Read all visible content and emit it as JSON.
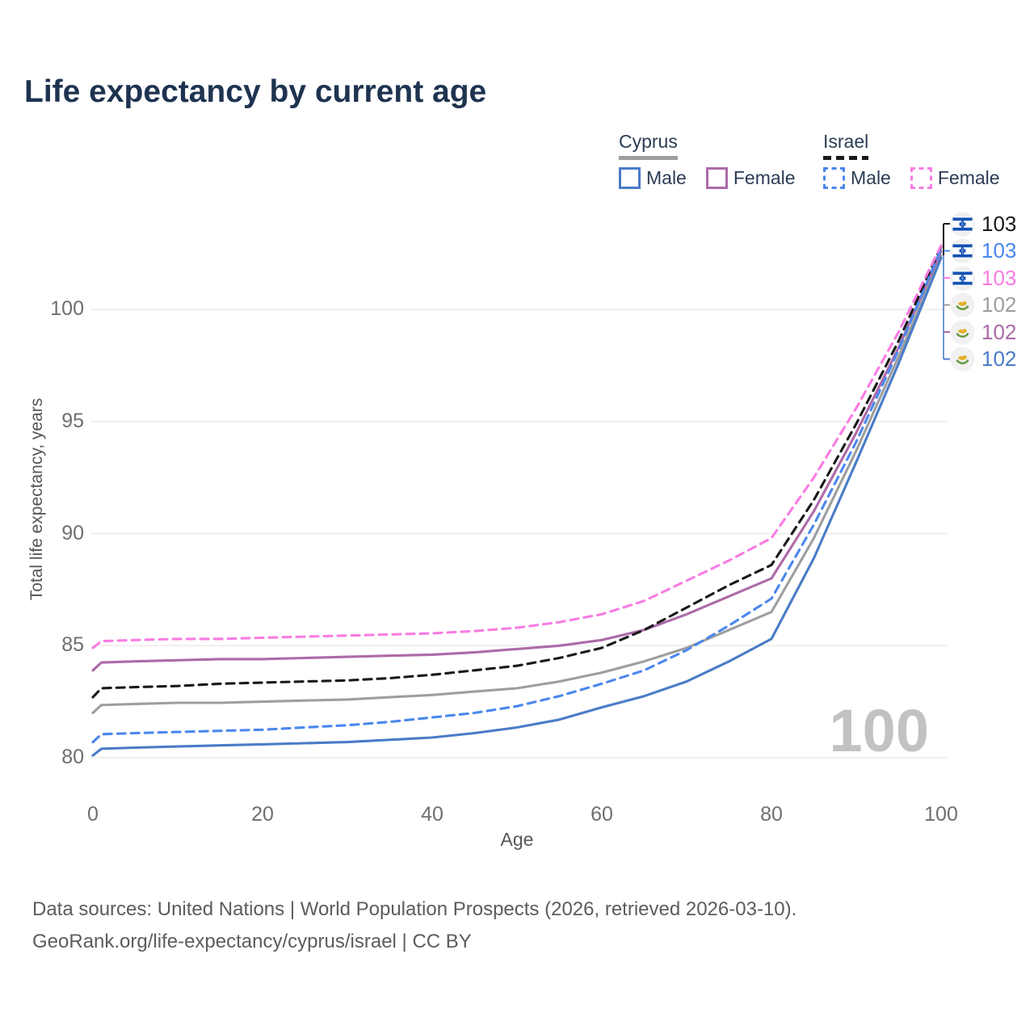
{
  "title": "Life expectancy by current age",
  "legend": {
    "groups": [
      {
        "label": "Cyprus",
        "series": "Cyprus",
        "items": [
          {
            "label": "Male",
            "series": "Cyprus Male"
          },
          {
            "label": "Female",
            "series": "Cyprus Female"
          }
        ]
      },
      {
        "label": "Israel",
        "series": "Israel",
        "items": [
          {
            "label": "Male",
            "series": "Israel Male"
          },
          {
            "label": "Female",
            "series": "Israel Female"
          }
        ]
      }
    ]
  },
  "watermark_age": "100",
  "end_labels": [
    {
      "flag": "Israel",
      "value": "103",
      "color": "#1a1a1a"
    },
    {
      "flag": "Israel",
      "value": "103",
      "color": "#4b87ee"
    },
    {
      "flag": "Israel",
      "value": "103",
      "color": "#f97ce3"
    },
    {
      "flag": "Cyprus",
      "value": "102",
      "color": "#9e9e9e"
    },
    {
      "flag": "Cyprus",
      "value": "102",
      "color": "#ad6aa8"
    },
    {
      "flag": "Cyprus",
      "value": "102",
      "color": "#4a7cc7"
    }
  ],
  "footer": {
    "line1": "Data sources: United Nations | World Population Prospects (2026, retrieved 2026-03-10).",
    "line2": "GeoRank.org/life-expectancy/cyprus/israel | CC BY"
  },
  "chart_data": {
    "type": "line",
    "title": "Life expectancy by current age",
    "xlabel": "Age",
    "ylabel": "Total life expectancy, years",
    "xlim": [
      0,
      100
    ],
    "ylim": [
      79.5,
      103.5
    ],
    "x_ticks": [
      0,
      20,
      40,
      60,
      80,
      100
    ],
    "y_ticks": [
      80,
      85,
      90,
      95,
      100
    ],
    "grid": "horizontal",
    "legend_position": "top-right",
    "x": [
      0,
      1,
      5,
      10,
      15,
      20,
      25,
      30,
      35,
      40,
      45,
      50,
      55,
      60,
      65,
      70,
      75,
      80,
      85,
      90,
      95,
      100
    ],
    "series": [
      {
        "name": "Cyprus",
        "country": "Cyprus",
        "sex": "Both",
        "color": "#9e9e9e",
        "dash": "solid",
        "values": [
          82.0,
          82.35,
          82.4,
          82.45,
          82.45,
          82.5,
          82.55,
          82.6,
          82.7,
          82.8,
          82.95,
          83.1,
          83.4,
          83.8,
          84.3,
          84.9,
          85.7,
          86.5,
          89.8,
          93.7,
          97.9,
          102.4
        ]
      },
      {
        "name": "Cyprus Male",
        "country": "Cyprus",
        "sex": "Male",
        "color": "#4a7cc7",
        "dash": "solid",
        "values": [
          80.1,
          80.4,
          80.45,
          80.5,
          80.55,
          80.6,
          80.65,
          80.7,
          80.8,
          80.9,
          81.1,
          81.35,
          81.7,
          82.25,
          82.75,
          83.4,
          84.3,
          85.3,
          88.9,
          93.2,
          97.6,
          102.3
        ]
      },
      {
        "name": "Cyprus Female",
        "country": "Cyprus",
        "sex": "Female",
        "color": "#ad6aa8",
        "dash": "solid",
        "values": [
          83.9,
          84.25,
          84.3,
          84.35,
          84.4,
          84.4,
          84.45,
          84.5,
          84.55,
          84.6,
          84.7,
          84.85,
          85.0,
          85.25,
          85.7,
          86.4,
          87.2,
          88.0,
          91.0,
          94.5,
          98.3,
          102.6
        ]
      },
      {
        "name": "Israel",
        "country": "Israel",
        "sex": "Both",
        "color": "#1a1a1a",
        "dash": "dashed",
        "values": [
          82.7,
          83.1,
          83.15,
          83.2,
          83.3,
          83.35,
          83.4,
          83.45,
          83.55,
          83.7,
          83.9,
          84.1,
          84.45,
          84.9,
          85.7,
          86.7,
          87.7,
          88.6,
          91.5,
          94.9,
          98.6,
          102.8
        ]
      },
      {
        "name": "Israel Male",
        "country": "Israel",
        "sex": "Male",
        "color": "#4b87ee",
        "dash": "dashed",
        "values": [
          80.7,
          81.05,
          81.1,
          81.15,
          81.2,
          81.25,
          81.35,
          81.45,
          81.6,
          81.8,
          82.0,
          82.3,
          82.75,
          83.3,
          83.9,
          84.8,
          85.9,
          87.1,
          90.4,
          94.1,
          98.2,
          102.7
        ]
      },
      {
        "name": "Israel Female",
        "country": "Israel",
        "sex": "Female",
        "color": "#f97ce3",
        "dash": "dashed",
        "values": [
          84.9,
          85.2,
          85.25,
          85.3,
          85.3,
          85.35,
          85.4,
          85.45,
          85.5,
          85.55,
          85.65,
          85.8,
          86.05,
          86.4,
          87.0,
          87.9,
          88.8,
          89.8,
          92.5,
          95.6,
          99.0,
          102.85
        ]
      }
    ]
  }
}
